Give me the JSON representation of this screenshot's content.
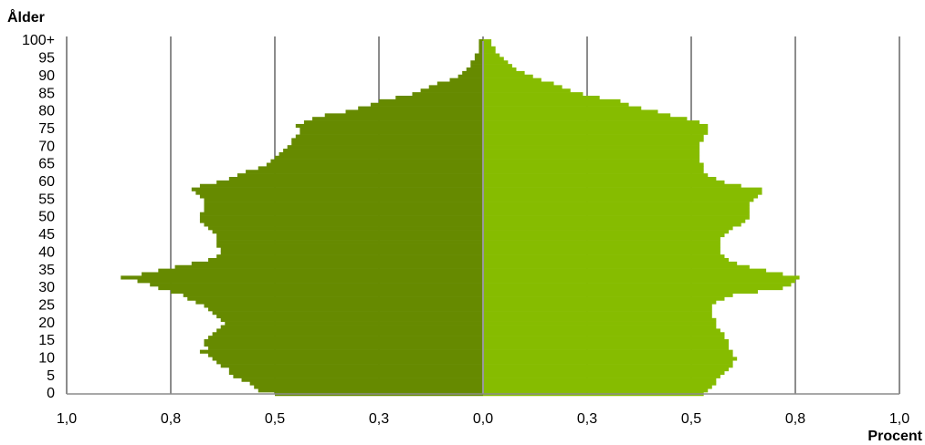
{
  "chart_data": {
    "type": "pyramid",
    "y_label": "Ålder",
    "x_label": "Procent",
    "categories": [
      "0",
      null,
      null,
      null,
      null,
      "5",
      null,
      null,
      null,
      null,
      "10",
      null,
      null,
      null,
      null,
      "15",
      null,
      null,
      null,
      null,
      "20",
      null,
      null,
      null,
      null,
      "25",
      null,
      null,
      null,
      null,
      "30",
      null,
      null,
      null,
      null,
      "35",
      null,
      null,
      null,
      null,
      "40",
      null,
      null,
      null,
      null,
      "45",
      null,
      null,
      null,
      null,
      "50",
      null,
      null,
      null,
      null,
      "55",
      null,
      null,
      null,
      null,
      "60",
      null,
      null,
      null,
      null,
      "65",
      null,
      null,
      null,
      null,
      "70",
      null,
      null,
      null,
      null,
      "75",
      null,
      null,
      null,
      null,
      "80",
      null,
      null,
      null,
      null,
      "85",
      null,
      null,
      null,
      null,
      "90",
      null,
      null,
      null,
      null,
      "95",
      null,
      null,
      null,
      null,
      "100+"
    ],
    "series": [
      {
        "color": "#668a00",
        "values": [
          -0.5,
          -0.54,
          -0.55,
          -0.56,
          -0.58,
          -0.6,
          -0.61,
          -0.61,
          -0.63,
          -0.64,
          -0.65,
          -0.66,
          -0.68,
          -0.66,
          -0.67,
          -0.67,
          -0.66,
          -0.65,
          -0.64,
          -0.63,
          -0.62,
          -0.63,
          -0.64,
          -0.65,
          -0.66,
          -0.67,
          -0.69,
          -0.71,
          -0.72,
          -0.75,
          -0.78,
          -0.8,
          -0.83,
          -0.87,
          -0.82,
          -0.78,
          -0.74,
          -0.7,
          -0.66,
          -0.64,
          -0.63,
          -0.63,
          -0.64,
          -0.64,
          -0.64,
          -0.64,
          -0.65,
          -0.66,
          -0.67,
          -0.68,
          -0.68,
          -0.68,
          -0.67,
          -0.67,
          -0.67,
          -0.67,
          -0.68,
          -0.69,
          -0.7,
          -0.68,
          -0.64,
          -0.61,
          -0.59,
          -0.57,
          -0.54,
          -0.52,
          -0.51,
          -0.5,
          -0.49,
          -0.48,
          -0.47,
          -0.46,
          -0.46,
          -0.45,
          -0.44,
          -0.44,
          -0.45,
          -0.43,
          -0.41,
          -0.38,
          -0.33,
          -0.3,
          -0.27,
          -0.25,
          -0.21,
          -0.17,
          -0.15,
          -0.13,
          -0.11,
          -0.08,
          -0.06,
          -0.05,
          -0.04,
          -0.03,
          -0.03,
          -0.02,
          -0.02,
          -0.01,
          -0.01,
          -0.01,
          -0.01
        ]
      },
      {
        "color": "#86bc00",
        "values": [
          0.53,
          0.54,
          0.55,
          0.56,
          0.56,
          0.57,
          0.58,
          0.59,
          0.6,
          0.6,
          0.61,
          0.6,
          0.6,
          0.59,
          0.59,
          0.59,
          0.58,
          0.58,
          0.57,
          0.56,
          0.56,
          0.56,
          0.55,
          0.55,
          0.55,
          0.55,
          0.56,
          0.58,
          0.6,
          0.66,
          0.72,
          0.74,
          0.75,
          0.76,
          0.72,
          0.68,
          0.64,
          0.61,
          0.59,
          0.58,
          0.57,
          0.57,
          0.57,
          0.57,
          0.57,
          0.58,
          0.59,
          0.6,
          0.62,
          0.63,
          0.64,
          0.64,
          0.64,
          0.64,
          0.64,
          0.65,
          0.66,
          0.67,
          0.67,
          0.62,
          0.58,
          0.56,
          0.54,
          0.53,
          0.53,
          0.53,
          0.52,
          0.52,
          0.52,
          0.52,
          0.52,
          0.52,
          0.53,
          0.53,
          0.54,
          0.54,
          0.54,
          0.52,
          0.49,
          0.45,
          0.42,
          0.38,
          0.35,
          0.33,
          0.28,
          0.24,
          0.21,
          0.19,
          0.17,
          0.14,
          0.12,
          0.1,
          0.08,
          0.07,
          0.06,
          0.05,
          0.04,
          0.03,
          0.03,
          0.02,
          0.02
        ]
      }
    ],
    "xlim": [
      -1,
      1
    ],
    "xticks": [
      {
        "value": -1,
        "label": "1,0"
      },
      {
        "value": -0.75,
        "label": "0,8"
      },
      {
        "value": -0.5,
        "label": "0,5"
      },
      {
        "value": -0.25,
        "label": "0,3"
      },
      {
        "value": 0,
        "label": "0,0"
      },
      {
        "value": 0.25,
        "label": "0,3"
      },
      {
        "value": 0.5,
        "label": "0,5"
      },
      {
        "value": 0.75,
        "label": "0,8"
      },
      {
        "value": 1,
        "label": "1,0"
      }
    ],
    "grid": true
  }
}
